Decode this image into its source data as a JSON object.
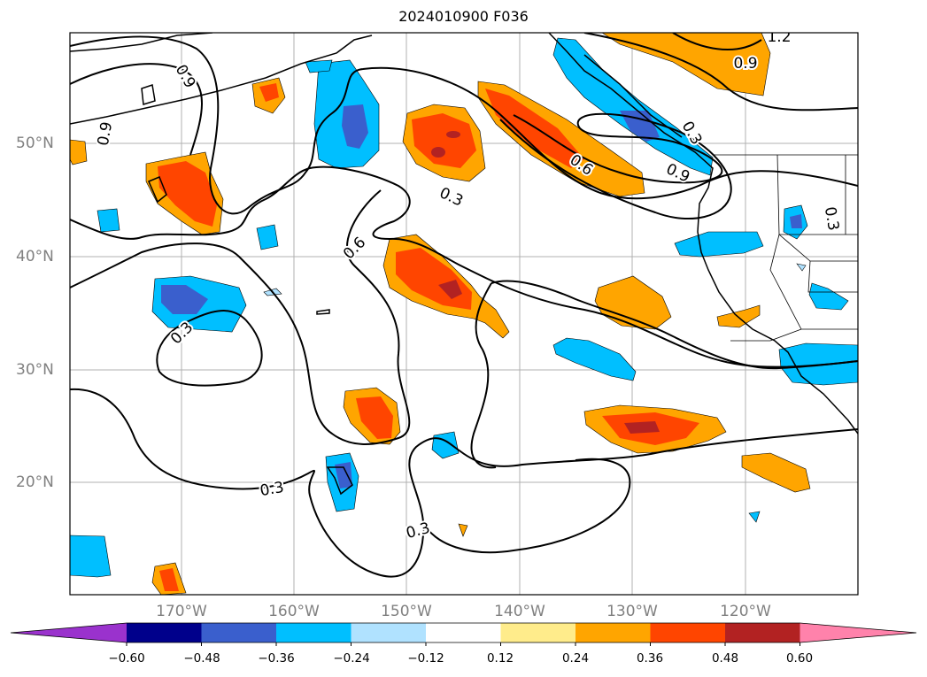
{
  "title": "2024010900 F036",
  "lat_labels": [
    "50°N",
    "40°N",
    "30°N",
    "20°N"
  ],
  "lon_labels": [
    "170°W",
    "160°W",
    "150°W",
    "140°W",
    "130°W",
    "120°W"
  ],
  "contour_labels": [
    "0.9",
    "0.9",
    "1.2",
    "0.9",
    "0.6",
    "0.9",
    "0.3",
    "0.6",
    "0.3",
    "0.3",
    "0.3",
    "0.3",
    "0.3"
  ],
  "colorbar": {
    "ticks": [
      "−0.60",
      "−0.48",
      "−0.36",
      "−0.24",
      "−0.12",
      "0.12",
      "0.24",
      "0.36",
      "0.48",
      "0.60"
    ],
    "colors": [
      "#9a32cd",
      "#00008b",
      "#3a5fcd",
      "#00bfff",
      "#b0e2ff",
      "#ffffff",
      "#ffec8b",
      "#ffa500",
      "#ff4500",
      "#b22222",
      "#ff82ab"
    ]
  }
}
